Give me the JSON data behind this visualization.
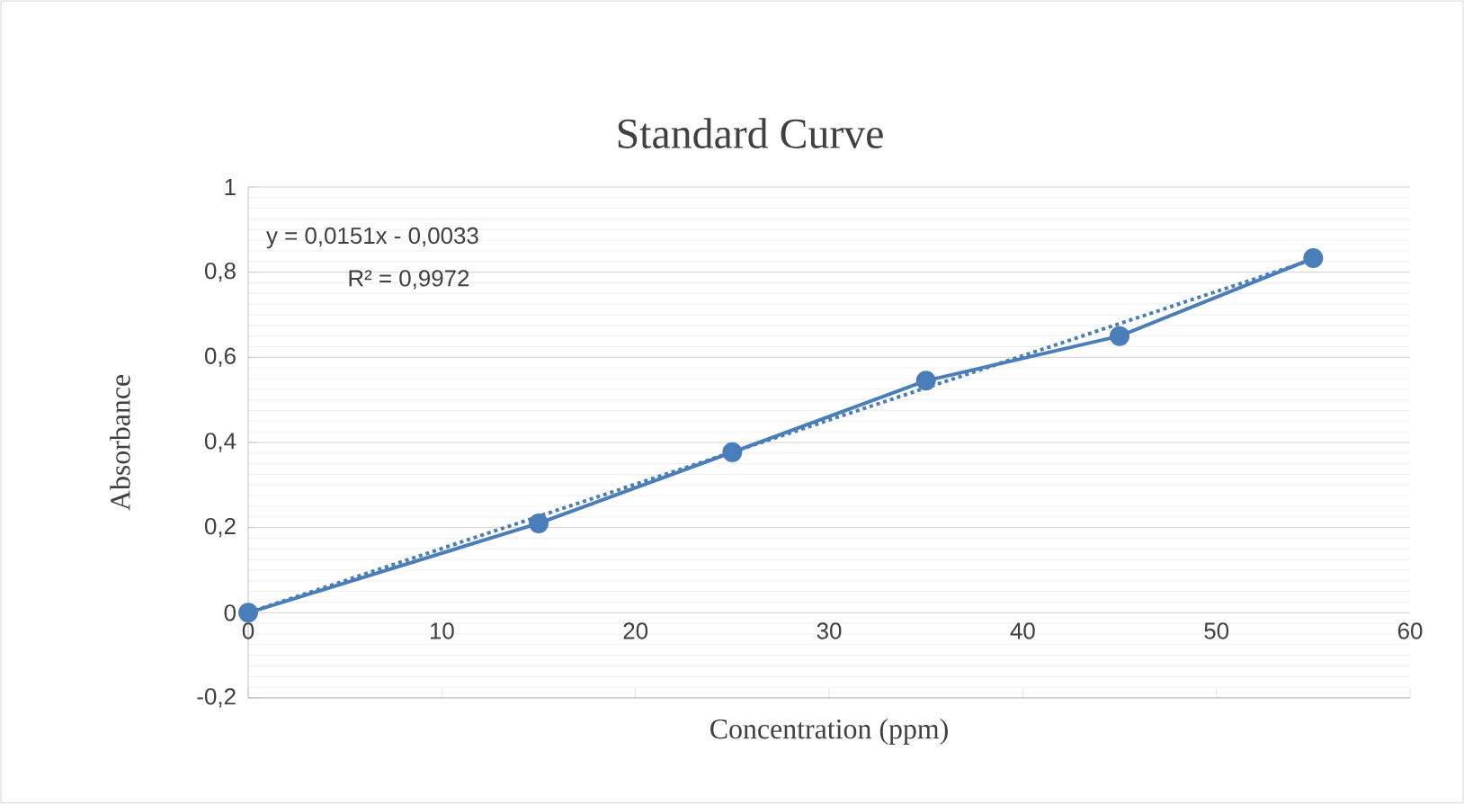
{
  "chart_data": {
    "type": "line",
    "title": "Standard Curve",
    "xlabel": "Concentration (ppm)",
    "ylabel": "Absorbance",
    "x": [
      0,
      15,
      25,
      35,
      45,
      55
    ],
    "series": [
      {
        "color": "#4a7ebb",
        "marker": "circle",
        "line_style": "solid",
        "values": [
          0,
          0.21,
          0.377,
          0.545,
          0.65,
          0.833
        ]
      },
      {
        "color": "#4a7ebb",
        "marker": "none",
        "line_style": "dotted",
        "x": [
          0,
          55
        ],
        "values": [
          0,
          0.83
        ]
      }
    ],
    "xlim": [
      0,
      60
    ],
    "ylim": [
      -0.2,
      1
    ],
    "xticks": [
      0,
      10,
      20,
      30,
      40,
      50,
      60
    ],
    "yticks": [
      {
        "value": -0.2,
        "label": "-0,2"
      },
      0,
      {
        "value": 0.2,
        "label": "0,2"
      },
      {
        "value": 0.4,
        "label": "0,4"
      },
      {
        "value": 0.6,
        "label": "0,6"
      },
      {
        "value": 0.8,
        "label": "0,8"
      },
      1
    ],
    "grid": "y",
    "annotations": [
      "y = 0,0151x - 0,0033",
      "R² = 0,9972"
    ]
  }
}
